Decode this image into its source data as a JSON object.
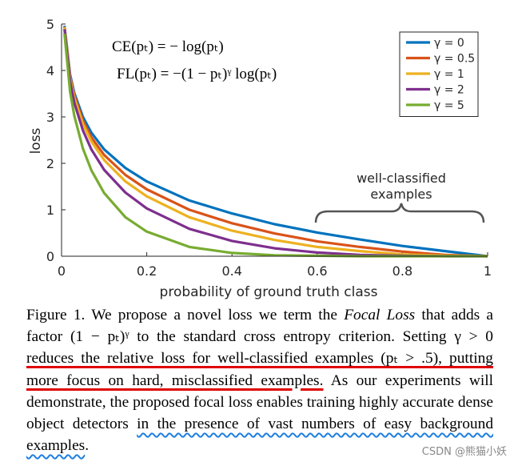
{
  "chart_data": {
    "type": "line",
    "x_label": "probability of ground truth class",
    "y_label": "loss",
    "formulas": [
      "CE(pₜ) = − log(pₜ)",
      "FL(pₜ) = −(1 − pₜ)ᵞ log(pₜ)"
    ],
    "annotation": [
      "well-classified",
      "examples"
    ],
    "x": [
      0.007,
      0.02,
      0.03,
      0.05,
      0.07,
      0.1,
      0.15,
      0.2,
      0.3,
      0.4,
      0.5,
      0.6,
      0.7,
      0.8,
      0.9,
      1
    ],
    "series": [
      {
        "name": "γ = 0",
        "color": "#0072bd",
        "values": [
          4.96,
          3.91,
          3.51,
          3.0,
          2.66,
          2.3,
          1.9,
          1.61,
          1.2,
          0.92,
          0.69,
          0.51,
          0.36,
          0.22,
          0.11,
          0
        ]
      },
      {
        "name": "γ = 0.5",
        "color": "#d95319",
        "values": [
          4.94,
          3.87,
          3.46,
          2.92,
          2.56,
          2.18,
          1.75,
          1.44,
          1.0,
          0.71,
          0.49,
          0.32,
          0.2,
          0.1,
          0.03,
          0
        ]
      },
      {
        "name": "γ = 1",
        "color": "#edb120",
        "values": [
          4.93,
          3.83,
          3.4,
          2.85,
          2.47,
          2.07,
          1.61,
          1.29,
          0.84,
          0.55,
          0.35,
          0.2,
          0.11,
          0.04,
          0.01,
          0
        ]
      },
      {
        "name": "γ = 2",
        "color": "#7e2f8e",
        "values": [
          4.89,
          3.76,
          3.3,
          2.71,
          2.3,
          1.86,
          1.37,
          1.03,
          0.59,
          0.33,
          0.17,
          0.08,
          0.03,
          0.01,
          0,
          0
        ]
      },
      {
        "name": "γ = 5",
        "color": "#77ac30",
        "values": [
          4.79,
          3.54,
          3.02,
          2.32,
          1.85,
          1.36,
          0.84,
          0.53,
          0.2,
          0.07,
          0.02,
          0.01,
          0,
          0,
          0,
          0
        ]
      }
    ],
    "xlim": [
      0,
      1
    ],
    "ylim": [
      0,
      5
    ],
    "xticks": [
      0,
      0.2,
      0.4,
      0.6,
      0.8,
      1
    ],
    "yticks": [
      0,
      1,
      2,
      3,
      4,
      5
    ],
    "legend": "upper right"
  },
  "caption": [
    "Figure 1. We propose a novel loss we term the ",
    "Focal Loss",
    " that adds a factor (1 − pₜ)ᵞ to the standard cross entropy criterion. Setting γ > 0 ",
    "reduces the relative loss for well-classified examples (pₜ > .5), putting more focus on hard, misclassified examples.",
    " As our experiments will demonstrate, the proposed focal loss enables training highly accurate dense object detectors ",
    "in the presence of vast numbers of easy background examples",
    "."
  ],
  "watermark": "CSDN @熊猫小妖"
}
